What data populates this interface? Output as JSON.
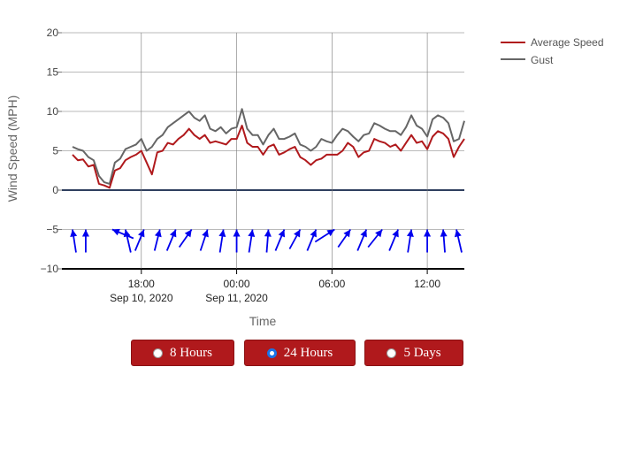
{
  "chart_data": {
    "type": "line",
    "xlabel": "Time",
    "ylabel": "Wind Speed (MPH)",
    "ylim": [
      -10,
      20
    ],
    "yticks": [
      -10,
      -5,
      0,
      5,
      10,
      15,
      20
    ],
    "x_start": "2020-09-10 13:00",
    "x_end": "2020-09-11 14:20",
    "x_ticks": [
      {
        "time": "2020-09-10 18:00",
        "label": "18:00",
        "sublabel": "Sep 10, 2020"
      },
      {
        "time": "2020-09-11 00:00",
        "label": "00:00",
        "sublabel": "Sep 11, 2020"
      },
      {
        "time": "2020-09-11 06:00",
        "label": "06:00",
        "sublabel": ""
      },
      {
        "time": "2020-09-11 12:00",
        "label": "12:00",
        "sublabel": ""
      }
    ],
    "grid": true,
    "legend_position": "top-right",
    "series": [
      {
        "name": "Average Speed",
        "color": "#b0191c",
        "points": [
          [
            "2020-09-10 13:40",
            4.5
          ],
          [
            "2020-09-10 14:00",
            3.8
          ],
          [
            "2020-09-10 14:20",
            3.9
          ],
          [
            "2020-09-10 14:40",
            3.0
          ],
          [
            "2020-09-10 15:00",
            3.2
          ],
          [
            "2020-09-10 15:20",
            0.8
          ],
          [
            "2020-09-10 15:40",
            0.6
          ],
          [
            "2020-09-10 16:00",
            0.3
          ],
          [
            "2020-09-10 16:20",
            2.5
          ],
          [
            "2020-09-10 16:40",
            2.8
          ],
          [
            "2020-09-10 17:00",
            3.8
          ],
          [
            "2020-09-10 17:20",
            4.2
          ],
          [
            "2020-09-10 17:40",
            4.5
          ],
          [
            "2020-09-10 18:00",
            5.0
          ],
          [
            "2020-09-10 18:20",
            3.5
          ],
          [
            "2020-09-10 18:40",
            2.0
          ],
          [
            "2020-09-10 19:00",
            4.8
          ],
          [
            "2020-09-10 19:20",
            5.0
          ],
          [
            "2020-09-10 19:40",
            6.0
          ],
          [
            "2020-09-10 20:00",
            5.8
          ],
          [
            "2020-09-10 20:20",
            6.5
          ],
          [
            "2020-09-10 20:40",
            7.0
          ],
          [
            "2020-09-10 21:00",
            7.8
          ],
          [
            "2020-09-10 21:20",
            7.0
          ],
          [
            "2020-09-10 21:40",
            6.5
          ],
          [
            "2020-09-10 22:00",
            7.0
          ],
          [
            "2020-09-10 22:20",
            6.0
          ],
          [
            "2020-09-10 22:40",
            6.2
          ],
          [
            "2020-09-10 23:00",
            6.0
          ],
          [
            "2020-09-10 23:20",
            5.8
          ],
          [
            "2020-09-10 23:40",
            6.5
          ],
          [
            "2020-09-11 00:00",
            6.5
          ],
          [
            "2020-09-11 00:20",
            8.2
          ],
          [
            "2020-09-11 00:40",
            6.0
          ],
          [
            "2020-09-11 01:00",
            5.5
          ],
          [
            "2020-09-11 01:20",
            5.5
          ],
          [
            "2020-09-11 01:40",
            4.5
          ],
          [
            "2020-09-11 02:00",
            5.5
          ],
          [
            "2020-09-11 02:20",
            5.8
          ],
          [
            "2020-09-11 02:40",
            4.5
          ],
          [
            "2020-09-11 03:00",
            4.8
          ],
          [
            "2020-09-11 03:20",
            5.2
          ],
          [
            "2020-09-11 03:40",
            5.5
          ],
          [
            "2020-09-11 04:00",
            4.2
          ],
          [
            "2020-09-11 04:20",
            3.8
          ],
          [
            "2020-09-11 04:40",
            3.2
          ],
          [
            "2020-09-11 05:00",
            3.8
          ],
          [
            "2020-09-11 05:20",
            4.0
          ],
          [
            "2020-09-11 05:40",
            4.5
          ],
          [
            "2020-09-11 06:00",
            4.5
          ],
          [
            "2020-09-11 06:20",
            4.5
          ],
          [
            "2020-09-11 06:40",
            5.0
          ],
          [
            "2020-09-11 07:00",
            6.0
          ],
          [
            "2020-09-11 07:20",
            5.5
          ],
          [
            "2020-09-11 07:40",
            4.2
          ],
          [
            "2020-09-11 08:00",
            4.8
          ],
          [
            "2020-09-11 08:20",
            5.0
          ],
          [
            "2020-09-11 08:40",
            6.5
          ],
          [
            "2020-09-11 09:00",
            6.2
          ],
          [
            "2020-09-11 09:20",
            6.0
          ],
          [
            "2020-09-11 09:40",
            5.5
          ],
          [
            "2020-09-11 10:00",
            5.8
          ],
          [
            "2020-09-11 10:20",
            5.0
          ],
          [
            "2020-09-11 10:40",
            6.0
          ],
          [
            "2020-09-11 11:00",
            7.0
          ],
          [
            "2020-09-11 11:20",
            6.0
          ],
          [
            "2020-09-11 11:40",
            6.2
          ],
          [
            "2020-09-11 12:00",
            5.2
          ],
          [
            "2020-09-11 12:20",
            6.8
          ],
          [
            "2020-09-11 12:40",
            7.5
          ],
          [
            "2020-09-11 13:00",
            7.2
          ],
          [
            "2020-09-11 13:20",
            6.5
          ],
          [
            "2020-09-11 13:40",
            4.2
          ],
          [
            "2020-09-11 14:00",
            5.5
          ],
          [
            "2020-09-11 14:20",
            6.5
          ]
        ]
      },
      {
        "name": "Gust",
        "color": "#666666",
        "points": [
          [
            "2020-09-10 13:40",
            5.5
          ],
          [
            "2020-09-10 14:00",
            5.2
          ],
          [
            "2020-09-10 14:20",
            5.0
          ],
          [
            "2020-09-10 14:40",
            4.2
          ],
          [
            "2020-09-10 15:00",
            3.8
          ],
          [
            "2020-09-10 15:20",
            1.8
          ],
          [
            "2020-09-10 15:40",
            1.0
          ],
          [
            "2020-09-10 16:00",
            0.8
          ],
          [
            "2020-09-10 16:20",
            3.5
          ],
          [
            "2020-09-10 16:40",
            4.0
          ],
          [
            "2020-09-10 17:00",
            5.2
          ],
          [
            "2020-09-10 17:20",
            5.5
          ],
          [
            "2020-09-10 17:40",
            5.8
          ],
          [
            "2020-09-10 18:00",
            6.5
          ],
          [
            "2020-09-10 18:20",
            5.0
          ],
          [
            "2020-09-10 18:40",
            5.5
          ],
          [
            "2020-09-10 19:00",
            6.5
          ],
          [
            "2020-09-10 19:20",
            7.0
          ],
          [
            "2020-09-10 19:40",
            8.0
          ],
          [
            "2020-09-10 20:00",
            8.5
          ],
          [
            "2020-09-10 20:20",
            9.0
          ],
          [
            "2020-09-10 20:40",
            9.5
          ],
          [
            "2020-09-10 21:00",
            10.0
          ],
          [
            "2020-09-10 21:20",
            9.2
          ],
          [
            "2020-09-10 21:40",
            8.8
          ],
          [
            "2020-09-10 22:00",
            9.5
          ],
          [
            "2020-09-10 22:20",
            7.8
          ],
          [
            "2020-09-10 22:40",
            7.5
          ],
          [
            "2020-09-10 23:00",
            8.0
          ],
          [
            "2020-09-10 23:20",
            7.2
          ],
          [
            "2020-09-10 23:40",
            7.8
          ],
          [
            "2020-09-11 00:00",
            8.0
          ],
          [
            "2020-09-11 00:20",
            10.3
          ],
          [
            "2020-09-11 00:40",
            7.8
          ],
          [
            "2020-09-11 01:00",
            7.0
          ],
          [
            "2020-09-11 01:20",
            7.0
          ],
          [
            "2020-09-11 01:40",
            5.8
          ],
          [
            "2020-09-11 02:00",
            7.0
          ],
          [
            "2020-09-11 02:20",
            7.8
          ],
          [
            "2020-09-11 02:40",
            6.5
          ],
          [
            "2020-09-11 03:00",
            6.5
          ],
          [
            "2020-09-11 03:20",
            6.8
          ],
          [
            "2020-09-11 03:40",
            7.2
          ],
          [
            "2020-09-11 04:00",
            5.8
          ],
          [
            "2020-09-11 04:20",
            5.5
          ],
          [
            "2020-09-11 04:40",
            5.0
          ],
          [
            "2020-09-11 05:00",
            5.5
          ],
          [
            "2020-09-11 05:20",
            6.5
          ],
          [
            "2020-09-11 05:40",
            6.2
          ],
          [
            "2020-09-11 06:00",
            6.0
          ],
          [
            "2020-09-11 06:20",
            7.0
          ],
          [
            "2020-09-11 06:40",
            7.8
          ],
          [
            "2020-09-11 07:00",
            7.5
          ],
          [
            "2020-09-11 07:20",
            6.8
          ],
          [
            "2020-09-11 07:40",
            6.2
          ],
          [
            "2020-09-11 08:00",
            7.0
          ],
          [
            "2020-09-11 08:20",
            7.2
          ],
          [
            "2020-09-11 08:40",
            8.5
          ],
          [
            "2020-09-11 09:00",
            8.2
          ],
          [
            "2020-09-11 09:20",
            7.8
          ],
          [
            "2020-09-11 09:40",
            7.5
          ],
          [
            "2020-09-11 10:00",
            7.5
          ],
          [
            "2020-09-11 10:20",
            7.0
          ],
          [
            "2020-09-11 10:40",
            8.0
          ],
          [
            "2020-09-11 11:00",
            9.5
          ],
          [
            "2020-09-11 11:20",
            8.2
          ],
          [
            "2020-09-11 11:40",
            7.8
          ],
          [
            "2020-09-11 12:00",
            6.8
          ],
          [
            "2020-09-11 12:20",
            9.0
          ],
          [
            "2020-09-11 12:40",
            9.5
          ],
          [
            "2020-09-11 13:00",
            9.2
          ],
          [
            "2020-09-11 13:20",
            8.5
          ],
          [
            "2020-09-11 13:40",
            6.2
          ],
          [
            "2020-09-11 14:00",
            6.5
          ],
          [
            "2020-09-11 14:20",
            8.8
          ]
        ]
      }
    ],
    "direction_arrows": {
      "color": "#0000ee",
      "points": [
        [
          "2020-09-10 13:40",
          -5
        ],
        [
          "2020-09-10 14:30",
          -5
        ],
        [
          "2020-09-10 16:10",
          -5
        ],
        [
          "2020-09-10 17:00",
          -5
        ],
        [
          "2020-09-10 18:10",
          -5
        ],
        [
          "2020-09-10 19:10",
          -5
        ],
        [
          "2020-09-10 20:10",
          -5
        ],
        [
          "2020-09-10 21:10",
          -5
        ],
        [
          "2020-09-10 22:10",
          -5
        ],
        [
          "2020-09-10 23:10",
          -5
        ],
        [
          "2020-09-11 00:00",
          -5
        ],
        [
          "2020-09-11 01:00",
          -5
        ],
        [
          "2020-09-11 02:00",
          -5
        ],
        [
          "2020-09-11 03:00",
          -5
        ],
        [
          "2020-09-11 04:00",
          -5
        ],
        [
          "2020-09-11 05:00",
          -5
        ],
        [
          "2020-09-11 06:10",
          -5
        ],
        [
          "2020-09-11 07:10",
          -5
        ],
        [
          "2020-09-11 08:10",
          -5
        ],
        [
          "2020-09-11 09:10",
          -5
        ],
        [
          "2020-09-11 10:10",
          -5
        ],
        [
          "2020-09-11 11:00",
          -5
        ],
        [
          "2020-09-11 12:00",
          -5
        ],
        [
          "2020-09-11 13:00",
          -5
        ],
        [
          "2020-09-11 13:50",
          -5
        ]
      ]
    }
  },
  "range_buttons": [
    {
      "label": "8 Hours",
      "checked": false
    },
    {
      "label": "24 Hours",
      "checked": true
    },
    {
      "label": "5 Days",
      "checked": false
    }
  ]
}
